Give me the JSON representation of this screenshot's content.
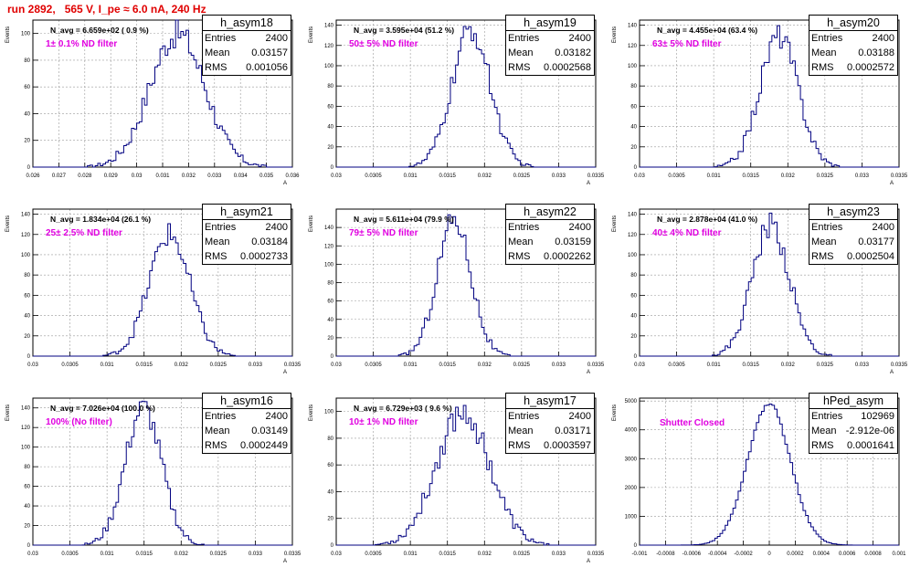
{
  "page": {
    "title": "run 2892,   565 V, I_pe ≈ 6.0 nA, 240 Hz"
  },
  "chart_data": [
    {
      "type": "histogram",
      "name": "h_asym18",
      "stats": {
        "entries_label": "Entries",
        "entries": "2400",
        "mean_label": "Mean",
        "mean": "0.03157",
        "rms_label": "RMS",
        "rms": "0.001056"
      },
      "n_avg": "N_avg = 6.659e+02 ( 0.9 %)",
      "filter": "1± 0.1% ND filter",
      "ylabel": "Events",
      "xlabel": "A",
      "xlim": [
        0.026,
        0.036
      ],
      "xticks": [
        "0.026",
        "0.027",
        "0.028",
        "0.029",
        "0.03",
        "0.031",
        "0.032",
        "0.033",
        "0.034",
        "0.035",
        "0.036"
      ],
      "ylim": [
        0,
        110
      ],
      "yticks": [
        "0",
        "20",
        "40",
        "60",
        "80",
        "100"
      ],
      "mean_val": 0.03157,
      "sigma": 0.001056,
      "peak": 100
    },
    {
      "type": "histogram",
      "name": "h_asym19",
      "stats": {
        "entries_label": "Entries",
        "entries": "2400",
        "mean_label": "Mean",
        "mean": "0.03182",
        "rms_label": "RMS",
        "rms": "0.0002568"
      },
      "n_avg": "N_avg = 3.595e+04 (51.2 %)",
      "filter": "50± 5% ND filter",
      "ylabel": "Events",
      "xlabel": "A",
      "xlim": [
        0.03,
        0.0335
      ],
      "xticks": [
        "0.03",
        "0.0305",
        "0.031",
        "0.0315",
        "0.032",
        "0.0325",
        "0.033",
        "0.0335"
      ],
      "ylim": [
        0,
        145
      ],
      "yticks": [
        "0",
        "20",
        "40",
        "60",
        "80",
        "100",
        "120",
        "140"
      ],
      "mean_val": 0.03182,
      "sigma": 0.0002568,
      "peak": 135
    },
    {
      "type": "histogram",
      "name": "h_asym20",
      "stats": {
        "entries_label": "Entries",
        "entries": "2400",
        "mean_label": "Mean",
        "mean": "0.03188",
        "rms_label": "RMS",
        "rms": "0.0002572"
      },
      "n_avg": "N_avg = 4.455e+04 (63.4 %)",
      "filter": "63± 5% ND filter",
      "ylabel": "Events",
      "xlabel": "A",
      "xlim": [
        0.03,
        0.0335
      ],
      "xticks": [
        "0.03",
        "0.0305",
        "0.031",
        "0.0315",
        "0.032",
        "0.0325",
        "0.033",
        "0.0335"
      ],
      "ylim": [
        0,
        145
      ],
      "yticks": [
        "0",
        "20",
        "40",
        "60",
        "80",
        "100",
        "120",
        "140"
      ],
      "mean_val": 0.03188,
      "sigma": 0.0002572,
      "peak": 130
    },
    {
      "type": "histogram",
      "name": "h_asym21",
      "stats": {
        "entries_label": "Entries",
        "entries": "2400",
        "mean_label": "Mean",
        "mean": "0.03184",
        "rms_label": "RMS",
        "rms": "0.0002733"
      },
      "n_avg": "N_avg = 1.834e+04 (26.1 %)",
      "filter": "25± 2.5% ND filter",
      "ylabel": "Events",
      "xlabel": "A",
      "xlim": [
        0.03,
        0.0335
      ],
      "xticks": [
        "0.03",
        "0.0305",
        "0.031",
        "0.0315",
        "0.032",
        "0.0325",
        "0.033",
        "0.0335"
      ],
      "ylim": [
        0,
        145
      ],
      "yticks": [
        "0",
        "20",
        "40",
        "60",
        "80",
        "100",
        "120",
        "140"
      ],
      "mean_val": 0.03184,
      "sigma": 0.0002733,
      "peak": 120
    },
    {
      "type": "histogram",
      "name": "h_asym22",
      "stats": {
        "entries_label": "Entries",
        "entries": "2400",
        "mean_label": "Mean",
        "mean": "0.03159",
        "rms_label": "RMS",
        "rms": "0.0002262"
      },
      "n_avg": "N_avg = 5.611e+04 (79.9 %)",
      "filter": "79± 5% ND filter",
      "ylabel": "Events",
      "xlabel": "A",
      "xlim": [
        0.03,
        0.0335
      ],
      "xticks": [
        "0.03",
        "0.0305",
        "0.031",
        "0.0315",
        "0.032",
        "0.0325",
        "0.033",
        "0.0335"
      ],
      "ylim": [
        0,
        160
      ],
      "yticks": [
        "0",
        "20",
        "40",
        "60",
        "80",
        "100",
        "120",
        "140"
      ],
      "mean_val": 0.03159,
      "sigma": 0.0002262,
      "peak": 150
    },
    {
      "type": "histogram",
      "name": "h_asym23",
      "stats": {
        "entries_label": "Entries",
        "entries": "2400",
        "mean_label": "Mean",
        "mean": "0.03177",
        "rms_label": "RMS",
        "rms": "0.0002504"
      },
      "n_avg": "N_avg = 2.878e+04 (41.0 %)",
      "filter": "40± 4% ND filter",
      "ylabel": "Events",
      "xlabel": "A",
      "xlim": [
        0.03,
        0.0335
      ],
      "xticks": [
        "0.03",
        "0.0305",
        "0.031",
        "0.0315",
        "0.032",
        "0.0325",
        "0.033",
        "0.0335"
      ],
      "ylim": [
        0,
        145
      ],
      "yticks": [
        "0",
        "20",
        "40",
        "60",
        "80",
        "100",
        "120",
        "140"
      ],
      "mean_val": 0.03177,
      "sigma": 0.0002504,
      "peak": 130
    },
    {
      "type": "histogram",
      "name": "h_asym16",
      "stats": {
        "entries_label": "Entries",
        "entries": "2400",
        "mean_label": "Mean",
        "mean": "0.03149",
        "rms_label": "RMS",
        "rms": "0.0002449"
      },
      "n_avg": "N_avg = 7.026e+04 (100.0 %)",
      "filter": "100% (No filter)",
      "ylabel": "Events",
      "xlabel": "A",
      "xlim": [
        0.03,
        0.0335
      ],
      "xticks": [
        "0.03",
        "0.0305",
        "0.031",
        "0.0315",
        "0.032",
        "0.0325",
        "0.033",
        "0.0335"
      ],
      "ylim": [
        0,
        150
      ],
      "yticks": [
        "0",
        "20",
        "40",
        "60",
        "80",
        "100",
        "120",
        "140"
      ],
      "mean_val": 0.03149,
      "sigma": 0.0002449,
      "peak": 140
    },
    {
      "type": "histogram",
      "name": "h_asym17",
      "stats": {
        "entries_label": "Entries",
        "entries": "2400",
        "mean_label": "Mean",
        "mean": "0.03171",
        "rms_label": "RMS",
        "rms": "0.0003597"
      },
      "n_avg": "N_avg = 6.729e+03 ( 9.6 %)",
      "filter": "10± 1% ND filter",
      "ylabel": "Events",
      "xlabel": "A",
      "xlim": [
        0.03,
        0.0335
      ],
      "xticks": [
        "0.03",
        "0.0305",
        "0.031",
        "0.0315",
        "0.032",
        "0.0325",
        "0.033",
        "0.0335"
      ],
      "ylim": [
        0,
        110
      ],
      "yticks": [
        "0",
        "20",
        "40",
        "60",
        "80",
        "100"
      ],
      "mean_val": 0.03171,
      "sigma": 0.0003597,
      "peak": 100
    },
    {
      "type": "histogram",
      "name": "hPed_asym",
      "stats": {
        "entries_label": "Entries",
        "entries": "102969",
        "mean_label": "Mean",
        "mean": "-2.912e-06",
        "rms_label": "RMS",
        "rms": "0.0001641"
      },
      "n_avg": "",
      "filter": "Shutter Closed",
      "ylabel": "Events",
      "xlabel": "",
      "xlim": [
        -0.001,
        0.001
      ],
      "xticks": [
        "-0.001",
        "-0.0008",
        "-0.0006",
        "-0.0004",
        "-0.0002",
        "0",
        "0.0002",
        "0.0004",
        "0.0006",
        "0.0008",
        "0.001"
      ],
      "ylim": [
        0,
        5100
      ],
      "yticks": [
        "0",
        "1000",
        "2000",
        "3000",
        "4000",
        "5000"
      ],
      "mean_val": -2.912e-06,
      "sigma": 0.0001641,
      "peak": 4900
    }
  ]
}
